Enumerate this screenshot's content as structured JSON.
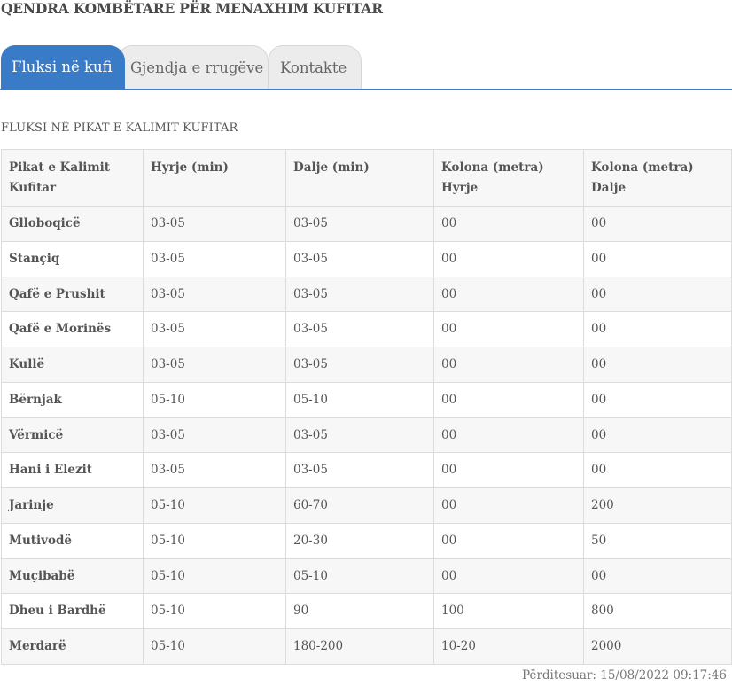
{
  "page_title": "QENDRA KOMBËTARE PËR MENAXHIM KUFITAR",
  "tabs": [
    {
      "label": "Fluksi në kufi",
      "active": true
    },
    {
      "label": "Gjendja e rrugëve",
      "active": false
    },
    {
      "label": "Kontakte",
      "active": false
    }
  ],
  "section_title": "FLUKSI NË PIKAT E KALIMIT KUFITAR",
  "table": {
    "headers": [
      {
        "line1": "Pikat e Kalimit",
        "line2": "Kufitar"
      },
      {
        "line1": "Hyrje (min)",
        "line2": ""
      },
      {
        "line1": "Dalje (min)",
        "line2": ""
      },
      {
        "line1": "Kolona (metra)",
        "line2": "Hyrje"
      },
      {
        "line1": "Kolona (metra)",
        "line2": "Dalje"
      }
    ],
    "rows": [
      [
        "Glloboqicë",
        "03-05",
        "03-05",
        "00",
        "00"
      ],
      [
        "Stançiq",
        "03-05",
        "03-05",
        "00",
        "00"
      ],
      [
        "Qafë e Prushit",
        "03-05",
        "03-05",
        "00",
        "00"
      ],
      [
        "Qafë e Morinës",
        "03-05",
        "03-05",
        "00",
        "00"
      ],
      [
        "Kullë",
        "03-05",
        "03-05",
        "00",
        "00"
      ],
      [
        "Bërnjak",
        "05-10",
        "05-10",
        "00",
        "00"
      ],
      [
        "Vërmicë",
        "03-05",
        "03-05",
        "00",
        "00"
      ],
      [
        "Hani i Elezit",
        "03-05",
        "03-05",
        "00",
        "00"
      ],
      [
        "Jarinje",
        "05-10",
        "60-70",
        "00",
        "200"
      ],
      [
        "Mutivodë",
        "05-10",
        "20-30",
        "00",
        "50"
      ],
      [
        "Muçibabë",
        "05-10",
        "05-10",
        "00",
        "00"
      ],
      [
        "Dheu i Bardhë",
        "05-10",
        "90",
        "100",
        "800"
      ],
      [
        "Merdarë",
        "05-10",
        "180-200",
        "10-20",
        "2000"
      ]
    ]
  },
  "updated": "Përditesuar: 15/08/2022 09:17:46",
  "colors": {
    "accent": "#3a7bc8",
    "row_alt": "#f7f7f7",
    "border": "#dcdcdc"
  }
}
